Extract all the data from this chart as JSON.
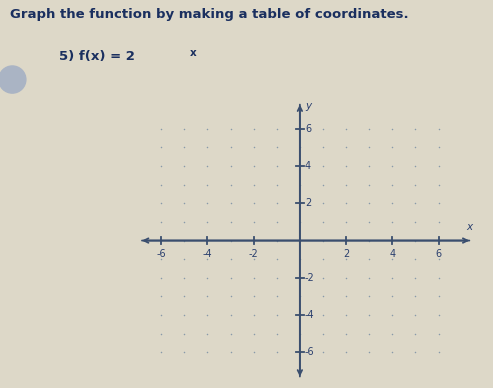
{
  "title": "Graph the function by making a table of coordinates.",
  "problem_base": "5) f(x) = 2",
  "problem_exp": "x",
  "xlim": [
    -7,
    7.5
  ],
  "ylim": [
    -7.5,
    7.5
  ],
  "xticks": [
    -6,
    -4,
    -2,
    2,
    4,
    6
  ],
  "yticks": [
    -6,
    -4,
    -2,
    2,
    4,
    6
  ],
  "xlabel": "x",
  "ylabel": "y",
  "axis_color": "#3a4e6e",
  "background_color": "#ddd8c8",
  "dot_color": "#8899aa",
  "tick_label_color": "#2a3f6e",
  "title_color": "#1a2f5f",
  "circle_color": "#aab4c4",
  "title_fontsize": 9.5,
  "problem_fontsize": 9.5,
  "label_fontsize": 7,
  "axis_label_fontsize": 7.5
}
